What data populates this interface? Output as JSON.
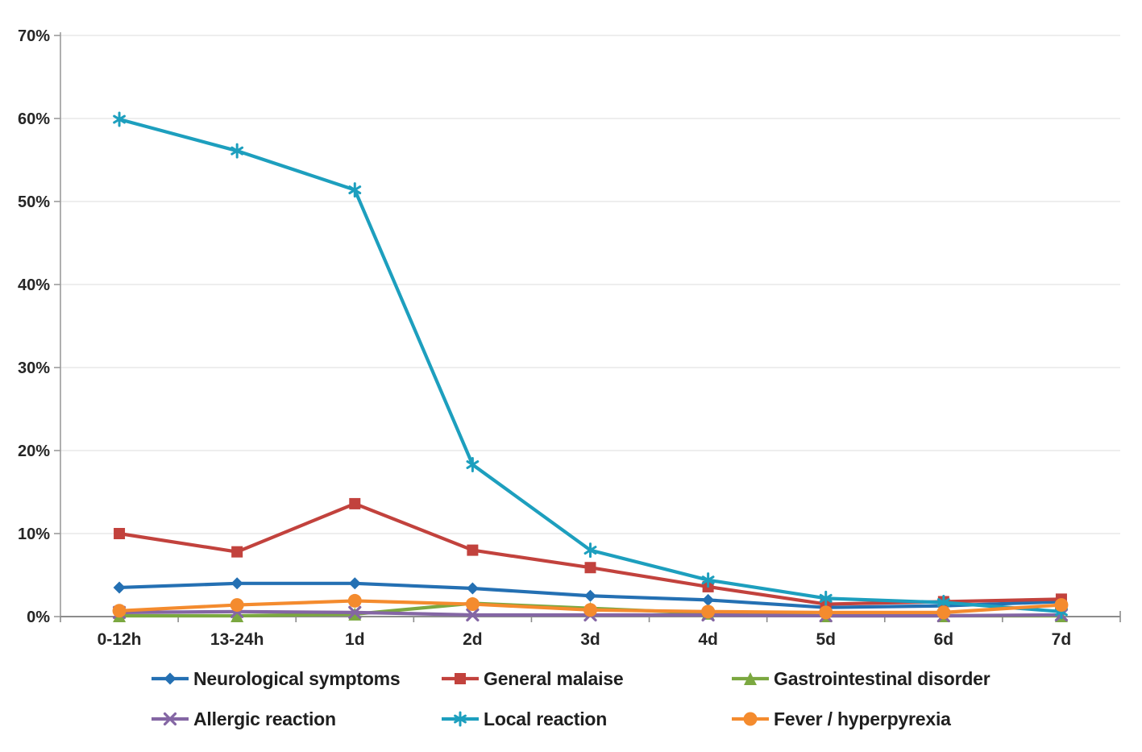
{
  "chart_data": {
    "type": "line",
    "title": "",
    "xlabel": "",
    "ylabel": "",
    "categories": [
      "0-12h",
      "13-24h",
      "1d",
      "2d",
      "3d",
      "4d",
      "5d",
      "6d",
      "7d"
    ],
    "series": [
      {
        "name": "Neurological symptoms",
        "marker": "diamond",
        "color": "#2470B3",
        "values": [
          3.5,
          4.0,
          4.0,
          3.4,
          2.5,
          2.0,
          1.1,
          1.3,
          1.8
        ]
      },
      {
        "name": "General malaise",
        "marker": "square",
        "color": "#C2423D",
        "values": [
          10.0,
          7.8,
          13.6,
          8.0,
          5.9,
          3.6,
          1.5,
          1.8,
          2.1
        ]
      },
      {
        "name": "Gastrointestinal disorder",
        "marker": "triangle",
        "color": "#7BA840",
        "values": [
          0.1,
          0.1,
          0.3,
          1.6,
          1.0,
          0.4,
          0.1,
          0.1,
          0.1
        ]
      },
      {
        "name": "Allergic reaction",
        "marker": "x",
        "color": "#8466A4",
        "values": [
          0.5,
          0.6,
          0.5,
          0.2,
          0.2,
          0.2,
          0.1,
          0.1,
          0.2
        ]
      },
      {
        "name": "Local reaction",
        "marker": "asterisk",
        "color": "#1D9FBE",
        "values": [
          59.9,
          56.1,
          51.4,
          18.3,
          8.0,
          4.4,
          2.2,
          1.7,
          0.6
        ]
      },
      {
        "name": "Fever / hyperpyrexia",
        "marker": "circle",
        "color": "#F48B2E",
        "values": [
          0.7,
          1.4,
          1.9,
          1.5,
          0.8,
          0.6,
          0.5,
          0.5,
          1.4
        ]
      }
    ],
    "ylim": [
      0,
      70
    ],
    "ytick_step": 10,
    "ytick_labels": [
      "0%",
      "10%",
      "20%",
      "30%",
      "40%",
      "50%",
      "60%",
      "70%"
    ],
    "grid": true,
    "legend_position": "bottom",
    "legend_rows": [
      [
        "Neurological symptoms",
        "General malaise",
        "Gastrointestinal disorder"
      ],
      [
        "Allergic reaction",
        "Local reaction",
        "Fever / hyperpyrexia"
      ]
    ],
    "colors": {
      "grid_color": "#E9E9E9",
      "axis_color": "#9B9B9B",
      "tick_text_color": "#262626",
      "background": "#FFFFFF"
    }
  }
}
